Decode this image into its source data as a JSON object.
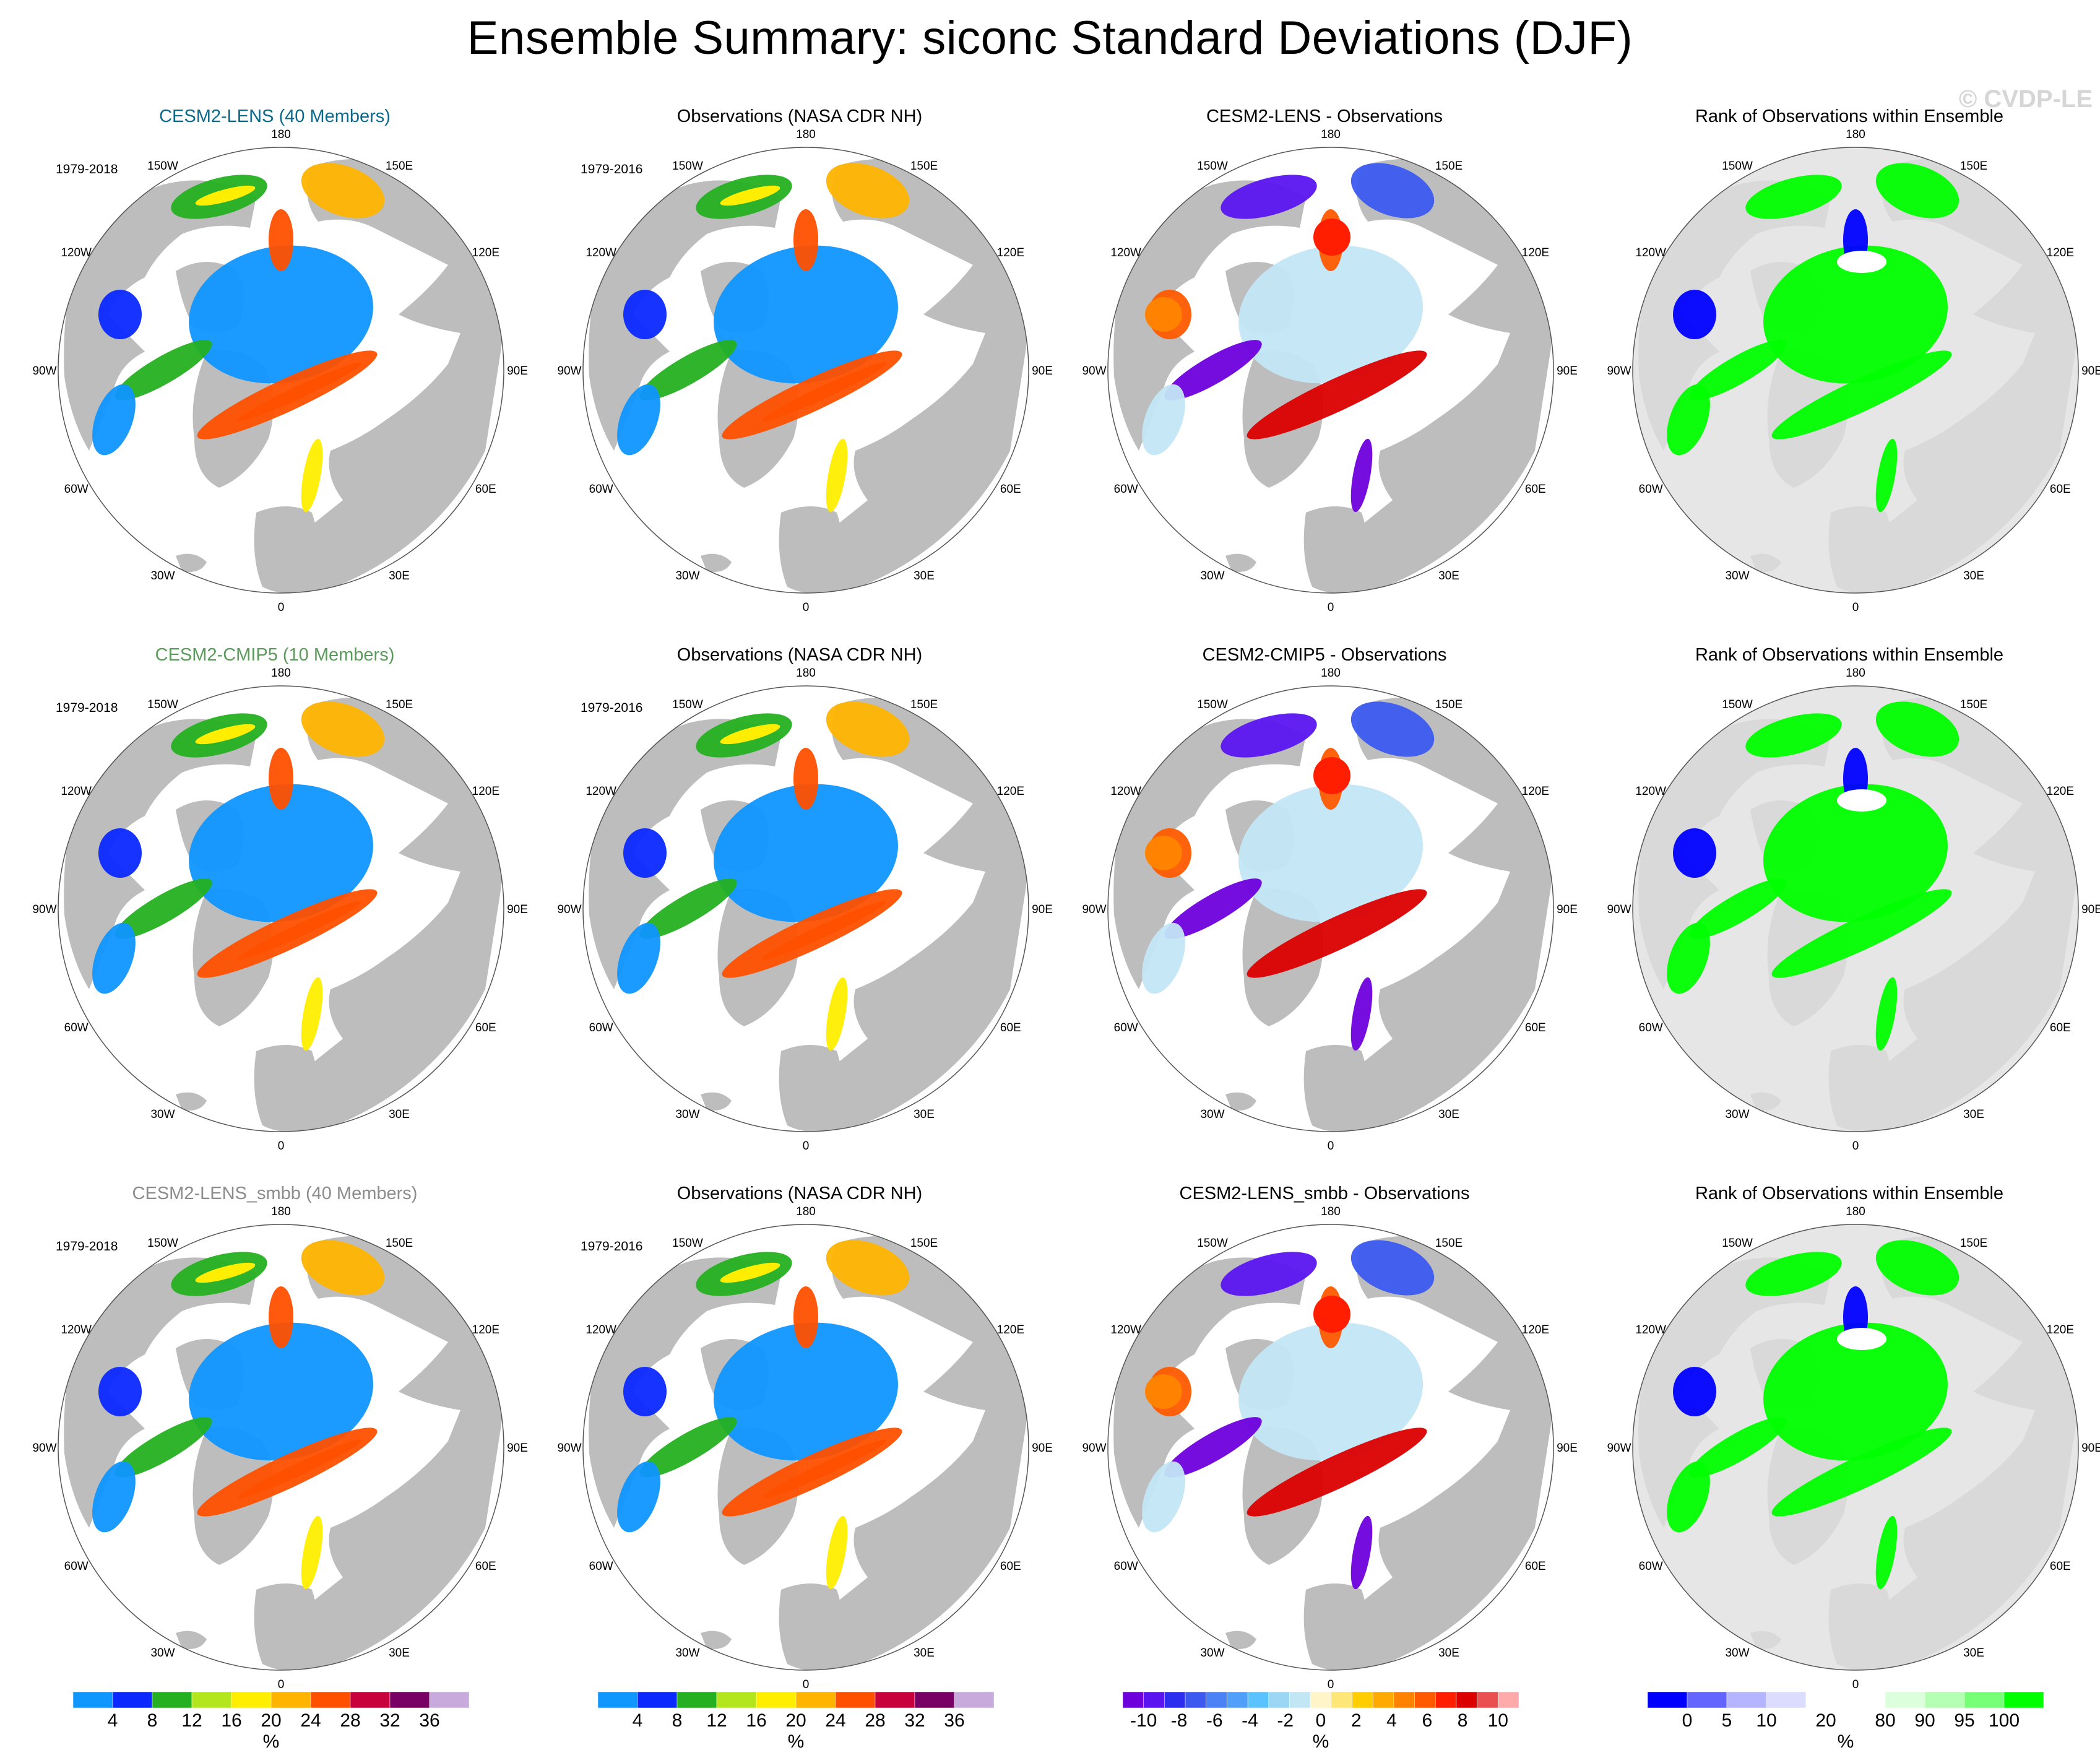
{
  "title": "Ensemble Summary: siconc Standard Deviations (DJF)",
  "watermark": "© CVDP-LE",
  "colors": {
    "land": "#bdbdbd",
    "ocean": "#ffffff",
    "rank_bg": "#e6e6e6",
    "cesm2_lens_title": "#0b6a8c",
    "cesm2_cmip5_title": "#5a9a5a",
    "smbb_title": "#8c8c8c"
  },
  "longitude_labels": [
    "180",
    "150E",
    "120E",
    "90E",
    "60E",
    "30E",
    "0",
    "30W",
    "60W",
    "90W",
    "120W",
    "150W"
  ],
  "rows": [
    {
      "panels": [
        {
          "title": "CESM2-LENS (40 Members)",
          "period": "1979-2018",
          "kind": "std",
          "title_color": "#0b6a8c"
        },
        {
          "title": "Observations (NASA CDR NH)",
          "period": "1979-2016",
          "kind": "std",
          "title_color": "#000000"
        },
        {
          "title": "CESM2-LENS - Observations",
          "period": "",
          "kind": "diff",
          "title_color": "#000000"
        },
        {
          "title": "Rank of Observations within Ensemble",
          "period": "",
          "kind": "rank",
          "title_color": "#000000"
        }
      ]
    },
    {
      "panels": [
        {
          "title": "CESM2-CMIP5 (10 Members)",
          "period": "1979-2018",
          "kind": "std",
          "title_color": "#5a9a5a"
        },
        {
          "title": "Observations (NASA CDR NH)",
          "period": "1979-2016",
          "kind": "std",
          "title_color": "#000000"
        },
        {
          "title": "CESM2-CMIP5 - Observations",
          "period": "",
          "kind": "diff",
          "title_color": "#000000"
        },
        {
          "title": "Rank of Observations within Ensemble",
          "period": "",
          "kind": "rank",
          "title_color": "#000000"
        }
      ]
    },
    {
      "panels": [
        {
          "title": "CESM2-LENS_smbb (40 Members)",
          "period": "1979-2018",
          "kind": "std",
          "title_color": "#8c8c8c"
        },
        {
          "title": "Observations (NASA CDR NH)",
          "period": "1979-2016",
          "kind": "std",
          "title_color": "#000000"
        },
        {
          "title": "CESM2-LENS_smbb - Observations",
          "period": "",
          "kind": "diff",
          "title_color": "#000000"
        },
        {
          "title": "Rank of Observations within Ensemble",
          "period": "",
          "kind": "rank",
          "title_color": "#000000"
        }
      ]
    }
  ],
  "colorbars": [
    {
      "unit": "%",
      "colors": [
        "#0f96ff",
        "#0a28ff",
        "#24b021",
        "#b4e61e",
        "#ffee00",
        "#ffb400",
        "#ff5000",
        "#c8003c",
        "#780064",
        "#c8aadc"
      ],
      "labels": [
        "4",
        "8",
        "12",
        "16",
        "20",
        "24",
        "28",
        "32",
        "36"
      ]
    },
    {
      "unit": "%",
      "colors": [
        "#0f96ff",
        "#0a28ff",
        "#24b021",
        "#b4e61e",
        "#ffee00",
        "#ffb400",
        "#ff5000",
        "#c8003c",
        "#780064",
        "#c8aadc"
      ],
      "labels": [
        "4",
        "8",
        "12",
        "16",
        "20",
        "24",
        "28",
        "32",
        "36"
      ]
    },
    {
      "unit": "%",
      "colors": [
        "#6e00dc",
        "#5a14f0",
        "#2d2df0",
        "#3c5af0",
        "#4b82f5",
        "#50a0fa",
        "#5ac3ff",
        "#9bd7f5",
        "#c3e6f5",
        "#fff5c8",
        "#ffe678",
        "#ffcd00",
        "#ffaa00",
        "#ff8200",
        "#ff5a00",
        "#ff1e00",
        "#dc0000",
        "#eb5050",
        "#ffaaaa"
      ],
      "labels": [
        "-10",
        "-8",
        "-6",
        "-4",
        "-2",
        "0",
        "2",
        "4",
        "6",
        "8",
        "10"
      ]
    },
    {
      "unit": "%",
      "colors": [
        "#0000ff",
        "#6464ff",
        "#b4b4ff",
        "#dcdcff",
        "#ffffff",
        "#ffffff",
        "#dcffdc",
        "#b4ffb4",
        "#78ff78",
        "#00ff00"
      ],
      "labels": [
        "0",
        "5",
        "10",
        "20",
        "80",
        "90",
        "95",
        "100"
      ]
    }
  ]
}
